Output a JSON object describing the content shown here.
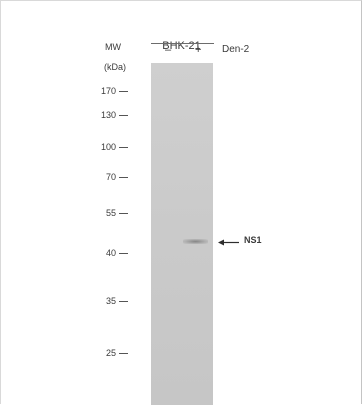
{
  "header": {
    "cell_line": "BHK-21",
    "mw_label": "MW",
    "unit_label": "(kDa)",
    "lanes": [
      "–",
      "+"
    ],
    "treatment": "Den-2"
  },
  "markers": [
    "170",
    "130",
    "100",
    "70",
    "55",
    "40",
    "35",
    "25"
  ],
  "annotation": {
    "label": "NS1"
  },
  "colors": {
    "blot": "#cacaca",
    "band": "#888888",
    "text": "#333333"
  }
}
